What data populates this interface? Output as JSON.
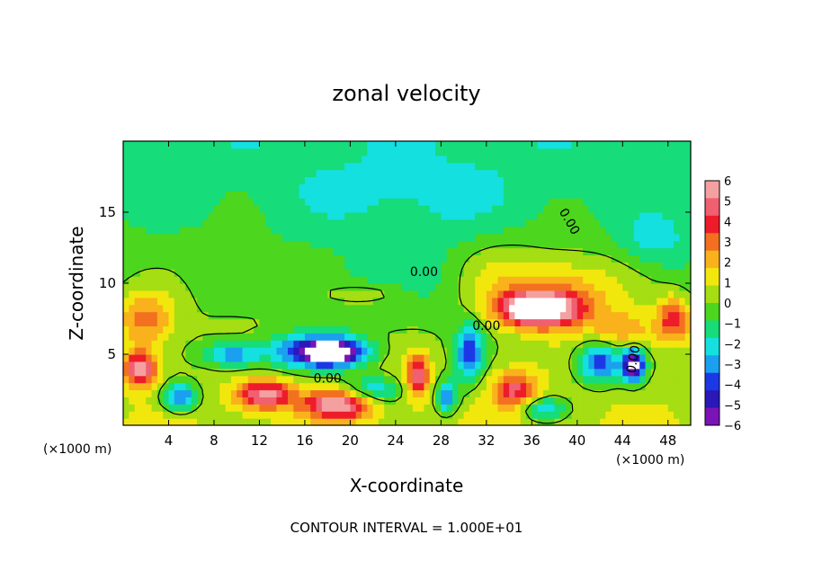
{
  "chart_data": {
    "type": "heatmap",
    "title": "zonal velocity",
    "xlabel": "X-coordinate",
    "ylabel": "Z-coordinate",
    "x_unit_left": "(×1000 m)",
    "x_unit_right": "(×1000 m)",
    "xlim": [
      0,
      50
    ],
    "ylim": [
      0,
      20
    ],
    "x_ticks": [
      4,
      8,
      12,
      16,
      20,
      24,
      28,
      32,
      36,
      40,
      44,
      48
    ],
    "y_ticks": [
      5,
      10,
      15
    ],
    "colorbar": {
      "min": -6,
      "max": 6,
      "tick_labels": [
        "6",
        "5",
        "4",
        "3",
        "2",
        "1",
        "0",
        "−1",
        "−2",
        "−3",
        "−4",
        "−5",
        "−6"
      ],
      "colors": [
        "#f4a0a0",
        "#f06070",
        "#ee1c2a",
        "#f37021",
        "#f9b21b",
        "#f2e70c",
        "#a4de13",
        "#4cd61e",
        "#16dc7a",
        "#14e0e0",
        "#1ba0f0",
        "#1c38e6",
        "#2a18b8",
        "#7a14b6"
      ]
    },
    "contour_label": "0.00",
    "contour_interval_text": "CONTOUR INTERVAL = 1.000E+01",
    "field_features": [
      {
        "x": 18.5,
        "z": 5.2,
        "sx": 3.0,
        "sz": 1.0,
        "v": -7.5
      },
      {
        "x": 15.0,
        "z": 5.2,
        "sx": 3.5,
        "sz": 1.3,
        "v": -2.5
      },
      {
        "x": 9.5,
        "z": 5.0,
        "sx": 2.5,
        "sz": 0.9,
        "v": -3.5
      },
      {
        "x": 36.5,
        "z": 8.2,
        "sx": 3.5,
        "sz": 1.2,
        "v": 7.5
      },
      {
        "x": 39.0,
        "z": 9.5,
        "sx": 5.0,
        "sz": 2.5,
        "v": 2.5
      },
      {
        "x": 33.0,
        "z": 10.5,
        "sx": 4.0,
        "sz": 2.5,
        "v": 1.5
      },
      {
        "x": 30.5,
        "z": 5.0,
        "sx": 1.2,
        "sz": 2.0,
        "v": -4.0
      },
      {
        "x": 42.0,
        "z": 4.5,
        "sx": 2.0,
        "sz": 1.5,
        "v": -4.5
      },
      {
        "x": 45.0,
        "z": 4.3,
        "sx": 1.0,
        "sz": 1.2,
        "v": -6.5
      },
      {
        "x": 2.0,
        "z": 7.5,
        "sx": 2.5,
        "sz": 2.0,
        "v": 3.0
      },
      {
        "x": 1.5,
        "z": 4.0,
        "sx": 1.5,
        "sz": 1.2,
        "v": 5.5
      },
      {
        "x": 48.5,
        "z": 7.5,
        "sx": 1.5,
        "sz": 1.5,
        "v": 4.0
      },
      {
        "x": 12.5,
        "z": 2.2,
        "sx": 2.5,
        "sz": 1.0,
        "v": 5.0
      },
      {
        "x": 19.0,
        "z": 1.5,
        "sx": 3.0,
        "sz": 1.0,
        "v": 5.5
      },
      {
        "x": 26.0,
        "z": 3.5,
        "sx": 1.0,
        "sz": 1.5,
        "v": 4.5
      },
      {
        "x": 28.5,
        "z": 2.0,
        "sx": 1.0,
        "sz": 1.2,
        "v": -4.0
      },
      {
        "x": 34.5,
        "z": 2.5,
        "sx": 2.0,
        "sz": 1.3,
        "v": 4.0
      },
      {
        "x": 37.0,
        "z": 1.2,
        "sx": 2.0,
        "sz": 0.8,
        "v": -3.0
      },
      {
        "x": 22.0,
        "z": 2.5,
        "sx": 2.5,
        "sz": 1.0,
        "v": -3.0
      },
      {
        "x": 5.0,
        "z": 2.0,
        "sx": 1.5,
        "sz": 1.0,
        "v": -4.5
      },
      {
        "x": 25.0,
        "z": 10.0,
        "sx": 8.0,
        "sz": 3.0,
        "v": -1.0
      },
      {
        "x": 22.0,
        "z": 9.3,
        "sx": 3.5,
        "sz": 0.8,
        "v": 1.5
      },
      {
        "x": 25.0,
        "z": 16.0,
        "sx": 10.0,
        "sz": 3.0,
        "v": -1.0
      },
      {
        "x": 47.0,
        "z": 13.0,
        "sx": 3.0,
        "sz": 2.0,
        "v": -1.5
      },
      {
        "x": 44.0,
        "z": 6.5,
        "sx": 3.0,
        "sz": 1.5,
        "v": 2.5
      }
    ]
  }
}
